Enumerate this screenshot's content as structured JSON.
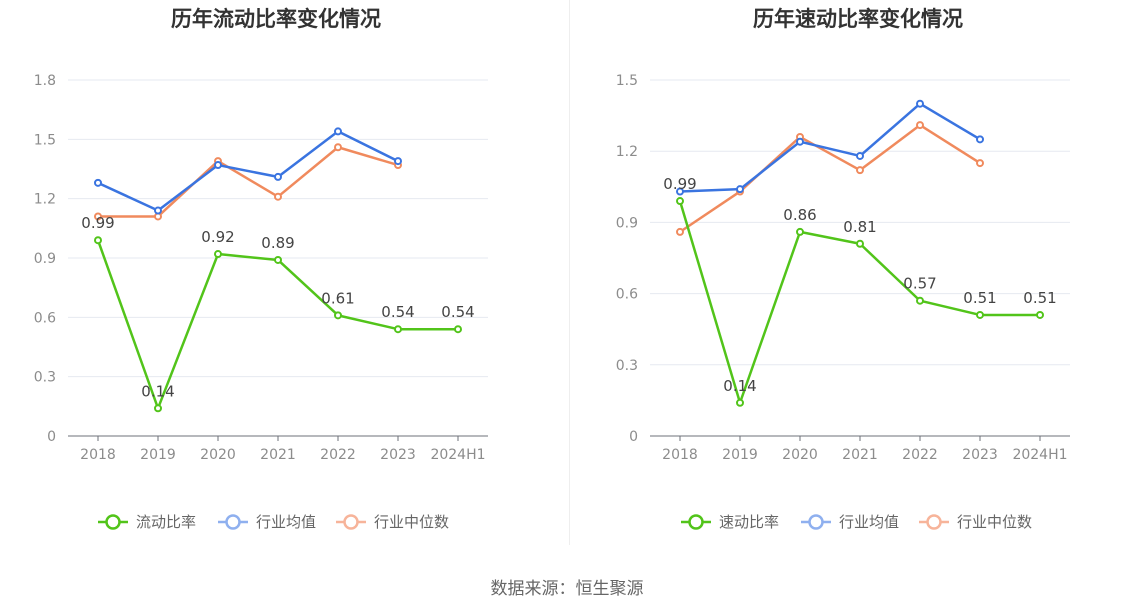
{
  "source": "数据来源：恒生聚源",
  "colors": {
    "company": "#52c41a",
    "industry_avg": "#3a74e0",
    "industry_median": "#f08a5d",
    "legend_avg": "#8fb0ef",
    "legend_median": "#f7b49a"
  },
  "chart_data": [
    {
      "type": "line",
      "title": "历年流动比率变化情况",
      "categories": [
        "2018",
        "2019",
        "2020",
        "2021",
        "2022",
        "2023",
        "2024H1"
      ],
      "ylim": [
        0,
        1.8
      ],
      "yticks": [
        "0",
        "0.3",
        "0.6",
        "0.9",
        "1.2",
        "1.5",
        "1.8"
      ],
      "grid": true,
      "legend_position": "bottom",
      "series": [
        {
          "name": "流动比率",
          "values": [
            0.99,
            0.14,
            0.92,
            0.89,
            0.61,
            0.54,
            0.54
          ],
          "labels": [
            "0.99",
            "0.14",
            "0.92",
            "0.89",
            "0.61",
            "0.54",
            "0.54"
          ]
        },
        {
          "name": "行业均值",
          "values": [
            1.28,
            1.14,
            1.37,
            1.31,
            1.54,
            1.39,
            null
          ]
        },
        {
          "name": "行业中位数",
          "values": [
            1.11,
            1.11,
            1.39,
            1.21,
            1.46,
            1.37,
            null
          ]
        }
      ]
    },
    {
      "type": "line",
      "title": "历年速动比率变化情况",
      "categories": [
        "2018",
        "2019",
        "2020",
        "2021",
        "2022",
        "2023",
        "2024H1"
      ],
      "ylim": [
        0,
        1.5
      ],
      "yticks": [
        "0",
        "0.3",
        "0.6",
        "0.9",
        "1.2",
        "1.5"
      ],
      "grid": true,
      "legend_position": "bottom",
      "series": [
        {
          "name": "速动比率",
          "values": [
            0.99,
            0.14,
            0.86,
            0.81,
            0.57,
            0.51,
            0.51
          ],
          "labels": [
            "0.99",
            "0.14",
            "0.86",
            "0.81",
            "0.57",
            "0.51",
            "0.51"
          ]
        },
        {
          "name": "行业均值",
          "values": [
            1.03,
            1.04,
            1.24,
            1.18,
            1.4,
            1.25,
            null
          ]
        },
        {
          "name": "行业中位数",
          "values": [
            0.86,
            1.03,
            1.26,
            1.12,
            1.31,
            1.15,
            null
          ]
        }
      ]
    }
  ]
}
